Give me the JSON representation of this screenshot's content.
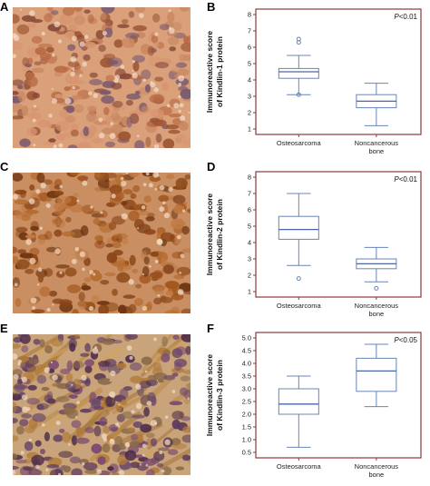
{
  "panels": {
    "A": "A",
    "B": "B",
    "C": "C",
    "D": "D",
    "E": "E",
    "F": "F"
  },
  "colors": {
    "frame": "#8b3a3a",
    "box": "#6a84b4",
    "median": "#4a66a8",
    "stain_brown_1": "#c8835a",
    "stain_brown_2": "#a8592a",
    "stain_purple": "#7a5a8a"
  },
  "chart_data": [
    {
      "type": "box",
      "panel": "B",
      "title": "",
      "p_value_prefix": "P",
      "p_value_rest": "<0.01",
      "ylabel_line1": "Immunoreactive score",
      "ylabel_line2": "of Kindlin-1 protein",
      "ylim": [
        1,
        8
      ],
      "yticks": [
        1,
        2,
        3,
        4,
        5,
        6,
        7,
        8
      ],
      "ytick_labels": [
        "1",
        "2",
        "3",
        "4",
        "5",
        "6",
        "7",
        "8"
      ],
      "categories": [
        {
          "line1": "Osteosarcoma",
          "line2": ""
        },
        {
          "line1": "Noncancerous",
          "line2": "bone"
        }
      ],
      "boxes": [
        {
          "whisker_low": 3.1,
          "q1": 4.1,
          "median": 4.5,
          "q3": 4.7,
          "whisker_high": 5.5,
          "outliers": [
            3.1,
            6.3,
            6.5
          ]
        },
        {
          "whisker_low": 1.2,
          "q1": 2.3,
          "median": 2.7,
          "q3": 3.1,
          "whisker_high": 3.8,
          "outliers": []
        }
      ]
    },
    {
      "type": "box",
      "panel": "D",
      "title": "",
      "p_value_prefix": "P",
      "p_value_rest": "<0.01",
      "ylabel_line1": "Immunoreactive score",
      "ylabel_line2": "of Kindlin-2 protein",
      "ylim": [
        1,
        8
      ],
      "yticks": [
        1,
        2,
        3,
        4,
        5,
        6,
        7,
        8
      ],
      "ytick_labels": [
        "1",
        "2",
        "3",
        "4",
        "5",
        "6",
        "7",
        "8"
      ],
      "categories": [
        {
          "line1": "Osteosarcoma",
          "line2": ""
        },
        {
          "line1": "Noncancerous",
          "line2": "bone"
        }
      ],
      "boxes": [
        {
          "whisker_low": 2.6,
          "q1": 4.2,
          "median": 4.8,
          "q3": 5.6,
          "whisker_high": 7.0,
          "outliers": [
            1.8
          ]
        },
        {
          "whisker_low": 1.6,
          "q1": 2.4,
          "median": 2.7,
          "q3": 3.0,
          "whisker_high": 3.7,
          "outliers": [
            1.2
          ]
        }
      ]
    },
    {
      "type": "box",
      "panel": "F",
      "title": "",
      "p_value_prefix": "P",
      "p_value_rest": "<0.05",
      "ylabel_line1": "Immunoreactive score",
      "ylabel_line2": "of Kindlin-3 protein",
      "ylim": [
        0.5,
        5.0
      ],
      "yticks": [
        0.5,
        1.0,
        1.5,
        2.0,
        2.5,
        3.0,
        3.5,
        4.0,
        4.5,
        5.0
      ],
      "ytick_labels": [
        "0.5",
        "1.0",
        "1.5",
        "2.0",
        "2.5",
        "3.0",
        "3.5",
        "4.0",
        "4.5",
        "5.0"
      ],
      "categories": [
        {
          "line1": "Osteosarcoma",
          "line2": ""
        },
        {
          "line1": "Noncancerous",
          "line2": "bone"
        }
      ],
      "boxes": [
        {
          "whisker_low": 0.7,
          "q1": 2.0,
          "median": 2.4,
          "q3": 3.0,
          "whisker_high": 3.5,
          "outliers": []
        },
        {
          "whisker_low": 2.3,
          "q1": 2.9,
          "median": 3.7,
          "q3": 4.2,
          "whisker_high": 4.75,
          "outliers": []
        }
      ]
    }
  ]
}
